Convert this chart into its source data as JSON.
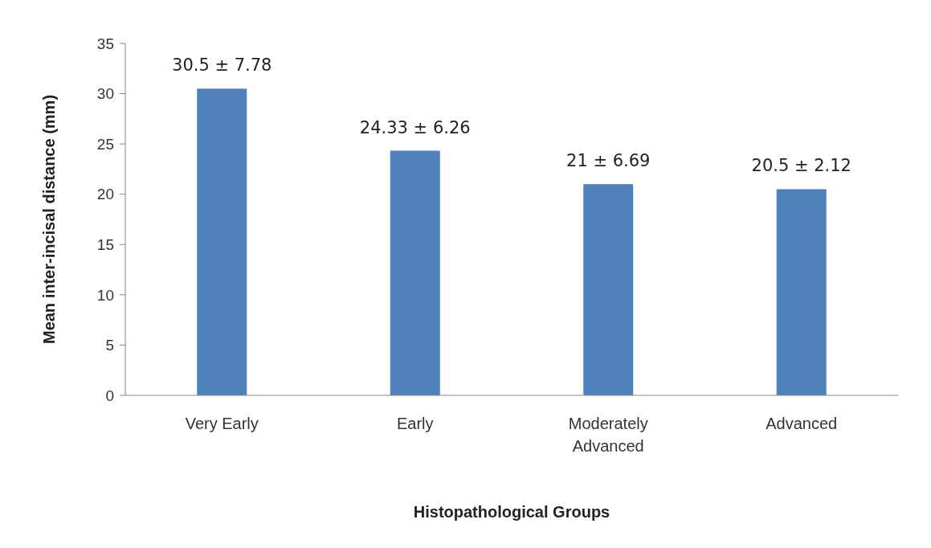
{
  "chart_data": {
    "type": "bar",
    "xlabel": "Histopathological Groups",
    "ylabel": "Mean inter-incisal distance (mm)",
    "categories": [
      "Very Early",
      "Early",
      "Moderately Advanced",
      "Advanced"
    ],
    "values": [
      30.5,
      24.33,
      21,
      20.5
    ],
    "value_labels": [
      "30.5 ± 7.78",
      "24.33 ± 6.26",
      "21 ± 6.69",
      "20.5 ± 2.12"
    ],
    "color": "#4f81bd",
    "ylim": [
      0,
      35
    ],
    "yticks": [
      0,
      5,
      10,
      15,
      20,
      25,
      30,
      35
    ]
  }
}
